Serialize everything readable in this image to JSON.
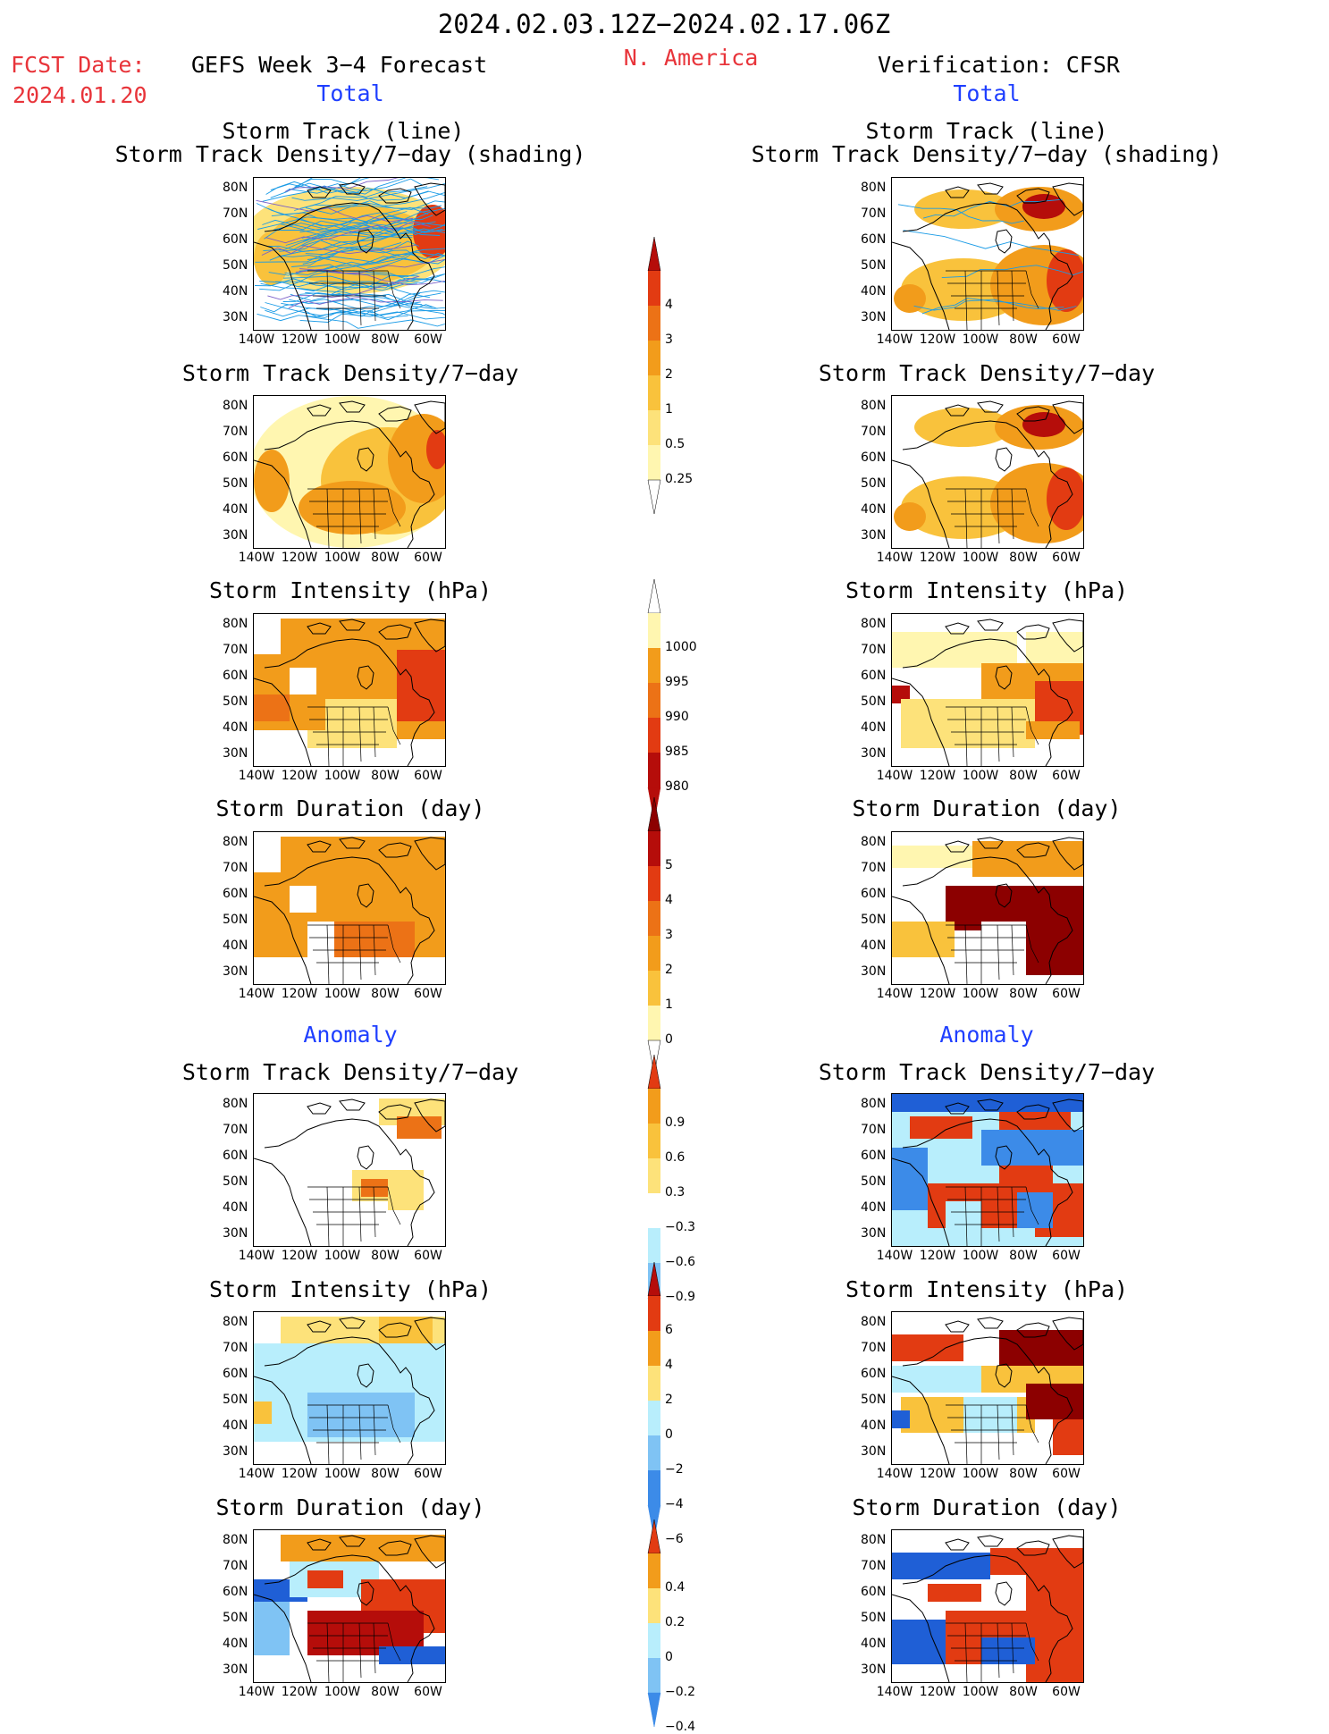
{
  "header": {
    "date_range": "2024.02.03.12Z−2024.02.17.06Z",
    "fcst_date_label": "FCST Date:",
    "fcst_date_value": "2024.01.20",
    "forecast_title": "GEFS Week 3−4 Forecast",
    "region": "N. America",
    "verification": "Verification: CFSR",
    "section_total": "Total",
    "section_anomaly": "Anomaly"
  },
  "panel_titles": {
    "track_line": "Storm Track (line)",
    "track_shading": "Storm Track Density/7−day (shading)",
    "density": "Storm Track Density/7−day",
    "intensity": "Storm Intensity (hPa)",
    "duration": "Storm Duration (day)"
  },
  "axis": {
    "lat_labels": [
      "80N",
      "70N",
      "60N",
      "50N",
      "40N",
      "30N"
    ],
    "lon_labels": [
      "140W",
      "120W",
      "100W",
      "80W",
      "60W"
    ]
  },
  "colorbars": {
    "density_total": [
      "4",
      "3",
      "2",
      "1",
      "0.5",
      "0.25"
    ],
    "intensity_total": [
      "1000",
      "995",
      "990",
      "985",
      "980"
    ],
    "duration_total": [
      "5",
      "4",
      "3",
      "2",
      "1",
      "0"
    ],
    "density_anom": [
      "0.9",
      "0.6",
      "0.3",
      "−0.3",
      "−0.6",
      "−0.9"
    ],
    "intensity_anom": [
      "6",
      "4",
      "2",
      "0",
      "−2",
      "−4",
      "−6"
    ],
    "duration_anom": [
      "0.4",
      "0.2",
      "0",
      "−0.2",
      "−0.4"
    ]
  },
  "colors": {
    "red_text": "#e8343a",
    "blue_text": "#1f3fff",
    "pale_yellow": "#fff6b0",
    "light_yellow": "#fde27a",
    "light_orange": "#f9c23c",
    "orange": "#f29c1b",
    "dark_orange": "#ec7216",
    "red": "#e23b12",
    "dark_red": "#b50d0a",
    "maroon": "#8c0000",
    "light_blue": "#b8eefc",
    "mid_blue": "#7fc3f4",
    "blue": "#3c8be8",
    "deep_blue": "#1f5fd6",
    "track_blue": "#1a9be6",
    "track_purple": "#7a5fc8"
  }
}
